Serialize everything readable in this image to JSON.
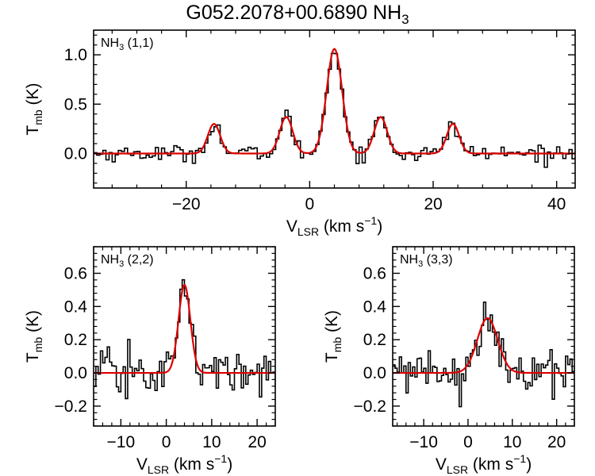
{
  "figure": {
    "title_main": "G052.2078+00.6890 NH",
    "title_sub": "3"
  },
  "chart_data": [
    {
      "type": "line",
      "id": "p11",
      "panel_label": {
        "main": "NH",
        "sub": "3",
        "rest": " (1,1)"
      },
      "xlabel": {
        "main": "V",
        "sub": "LSR",
        "rest": " (km s",
        "sup": "−1",
        "close": ")"
      },
      "ylabel": {
        "main": "T",
        "sub": "mb",
        "rest": " (K)"
      },
      "xlim": [
        -35,
        43
      ],
      "ylim": [
        -0.35,
        1.25
      ],
      "xticks": [
        -20,
        0,
        20,
        40
      ],
      "xtick_labels": [
        "−20",
        "0",
        "20",
        "40"
      ],
      "yticks": [
        0.0,
        0.5,
        1.0
      ],
      "ytick_labels": [
        "0.0",
        "0.5",
        "1.0"
      ],
      "fit_components": [
        {
          "center": -15.5,
          "amplitude": 0.3,
          "sigma": 1.0
        },
        {
          "center": -3.8,
          "amplitude": 0.37,
          "sigma": 1.05
        },
        {
          "center": 4.0,
          "amplitude": 1.06,
          "sigma": 1.25
        },
        {
          "center": 11.5,
          "amplitude": 0.37,
          "sigma": 1.05
        },
        {
          "center": 23.2,
          "amplitude": 0.3,
          "sigma": 1.0
        }
      ],
      "spectrum": {
        "x_start": -35,
        "x_step": 0.5,
        "noise_rms": 0.04
      },
      "series": [
        {
          "name": "Observed spectrum",
          "color": "#000000",
          "style": "histogram"
        },
        {
          "name": "Hyperfine fit",
          "color": "#dd0000",
          "style": "line"
        }
      ]
    },
    {
      "type": "line",
      "id": "p22",
      "panel_label": {
        "main": "NH",
        "sub": "3",
        "rest": " (2,2)"
      },
      "xlabel": {
        "main": "V",
        "sub": "LSR",
        "rest": " (km s",
        "sup": "−1",
        "close": ")"
      },
      "ylabel": {
        "main": "T",
        "sub": "mb",
        "rest": " (K)"
      },
      "xlim": [
        -16,
        24
      ],
      "ylim": [
        -0.32,
        0.76
      ],
      "xticks": [
        -10,
        0,
        10,
        20
      ],
      "xtick_labels": [
        "−10",
        "0",
        "10",
        "20"
      ],
      "yticks": [
        -0.2,
        0.0,
        0.2,
        0.4,
        0.6
      ],
      "ytick_labels": [
        "−0.2",
        "0.0",
        "0.2",
        "0.4",
        "0.6"
      ],
      "fit_components": [
        {
          "center": 4.0,
          "amplitude": 0.53,
          "sigma": 1.3
        }
      ],
      "spectrum": {
        "x_start": -16,
        "x_step": 0.5,
        "noise_rms": 0.07
      },
      "series": [
        {
          "name": "Observed spectrum",
          "color": "#000000",
          "style": "histogram"
        },
        {
          "name": "Gaussian fit",
          "color": "#dd0000",
          "style": "line"
        }
      ]
    },
    {
      "type": "line",
      "id": "p33",
      "panel_label": {
        "main": "NH",
        "sub": "3",
        "rest": " (3,3)"
      },
      "xlabel": {
        "main": "V",
        "sub": "LSR",
        "rest": " (km s",
        "sup": "−1",
        "close": ")"
      },
      "ylabel": {
        "main": "T",
        "sub": "mb",
        "rest": " (K)"
      },
      "xlim": [
        -17,
        24
      ],
      "ylim": [
        -0.32,
        0.76
      ],
      "xticks": [
        -10,
        0,
        10,
        20
      ],
      "xtick_labels": [
        "−10",
        "0",
        "10",
        "20"
      ],
      "yticks": [
        -0.2,
        0.0,
        0.2,
        0.4,
        0.6
      ],
      "ytick_labels": [
        "−0.2",
        "0.0",
        "0.2",
        "0.4",
        "0.6"
      ],
      "fit_components": [
        {
          "center": 4.4,
          "amplitude": 0.33,
          "sigma": 2.3
        }
      ],
      "spectrum": {
        "x_start": -17,
        "x_step": 0.5,
        "noise_rms": 0.06
      },
      "series": [
        {
          "name": "Observed spectrum",
          "color": "#000000",
          "style": "histogram"
        },
        {
          "name": "Gaussian fit",
          "color": "#dd0000",
          "style": "line"
        }
      ]
    }
  ]
}
